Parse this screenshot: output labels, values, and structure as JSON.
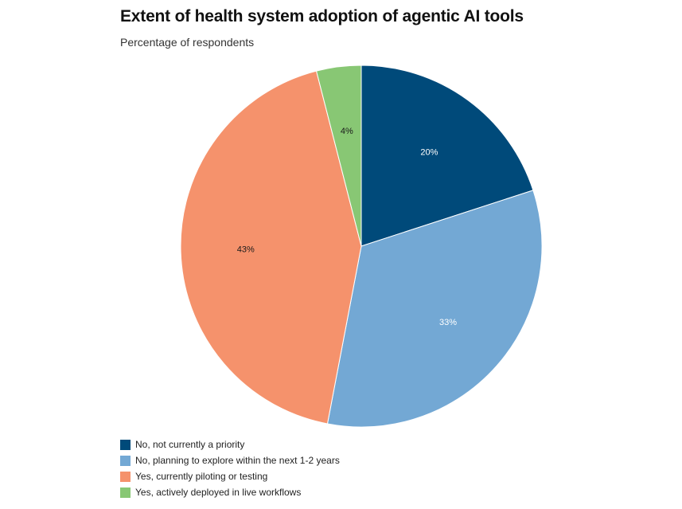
{
  "chart_data": {
    "type": "pie",
    "title": "Extent of health system adoption of agentic AI tools",
    "subtitle": "Percentage of respondents",
    "categories": [
      "No, not currently a priority",
      "No, planning to explore within the next 1-2 years",
      "Yes, currently piloting or testing",
      "Yes, actively deployed in live workflows"
    ],
    "values": [
      20,
      33,
      43,
      4
    ],
    "labels": [
      "20%",
      "33%",
      "43%",
      "4%"
    ],
    "colors": [
      "#004a7a",
      "#73a8d4",
      "#f5926c",
      "#88c774"
    ],
    "label_colors": [
      "#ffffff",
      "#ffffff",
      "#1a1a1a",
      "#1a1a1a"
    ],
    "start": "top, clockwise",
    "legend_position": "bottom-left"
  }
}
